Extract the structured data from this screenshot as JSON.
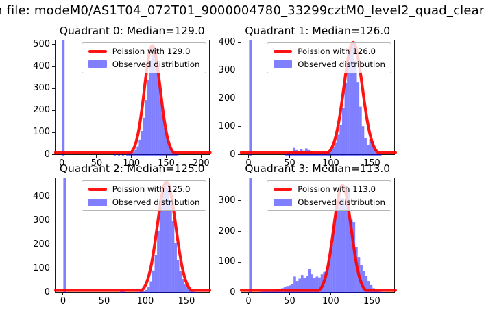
{
  "figure_title": "n file: modeM0/AS1T04_072T01_9000004780_33299cztM0_level2_quad_clear",
  "colors": {
    "observed_fill": "#0000ff",
    "observed_fill_effective": "#8080ff",
    "observed_alpha": 0.5,
    "poisson_line": "#ff0000",
    "legend_border": "#b6b6b6",
    "legend_background": "rgba(255,255,255,0.8)",
    "frame": "#1a1a1a",
    "background": "#ffffff"
  },
  "chart_data": [
    {
      "type": "bar",
      "subtype": "histogram-with-fit",
      "quadrant": 0,
      "title": "Quadrant 0: Median=129.0",
      "median": 129.0,
      "legend": {
        "fit_label": "Poission with 129.0",
        "observed_label": "Observed distribution",
        "position": "upper right"
      },
      "xlim": [
        -10,
        212
      ],
      "ylim": [
        0,
        523
      ],
      "xticks": [
        0,
        50,
        100,
        150,
        200
      ],
      "yticks": [
        0,
        100,
        200,
        300,
        400,
        500
      ],
      "bin_width": 3,
      "zero_spike": {
        "x": 0,
        "width": 3.5,
        "clipped_at_top": true
      },
      "poisson_fit": {
        "mu": 129.0,
        "sigma": 11.4,
        "amplitude": 500
      },
      "bars": [
        [
          75,
          7
        ],
        [
          81,
          5
        ],
        [
          87,
          6
        ],
        [
          93,
          8
        ],
        [
          96,
          10
        ],
        [
          99,
          12
        ],
        [
          102,
          16
        ],
        [
          105,
          26
        ],
        [
          108,
          42
        ],
        [
          111,
          72
        ],
        [
          114,
          112
        ],
        [
          117,
          172
        ],
        [
          120,
          252
        ],
        [
          123,
          345
        ],
        [
          126,
          432
        ],
        [
          129,
          490
        ],
        [
          132,
          470
        ],
        [
          135,
          428
        ],
        [
          138,
          350
        ],
        [
          141,
          262
        ],
        [
          144,
          185
        ],
        [
          147,
          126
        ],
        [
          150,
          82
        ],
        [
          153,
          52
        ],
        [
          156,
          31
        ],
        [
          159,
          18
        ],
        [
          162,
          10
        ],
        [
          165,
          6
        ]
      ]
    },
    {
      "type": "bar",
      "subtype": "histogram-with-fit",
      "quadrant": 1,
      "title": "Quadrant 1: Median=126.0",
      "median": 126.0,
      "legend": {
        "fit_label": "Poission with 126.0",
        "observed_label": "Observed distribution",
        "position": "upper right"
      },
      "xlim": [
        -10,
        178
      ],
      "ylim": [
        0,
        412
      ],
      "xticks": [
        0,
        50,
        100,
        150
      ],
      "yticks": [
        0,
        100,
        200,
        300,
        400
      ],
      "bin_width": 3,
      "zero_spike": {
        "x": 0,
        "width": 3.5,
        "clipped_at_top": true
      },
      "poisson_fit": {
        "mu": 126.0,
        "sigma": 11.2,
        "amplitude": 405
      },
      "bars": [
        [
          45,
          8
        ],
        [
          48,
          12
        ],
        [
          51,
          16
        ],
        [
          54,
          28
        ],
        [
          57,
          20
        ],
        [
          60,
          16
        ],
        [
          63,
          22
        ],
        [
          66,
          18
        ],
        [
          69,
          26
        ],
        [
          72,
          20
        ],
        [
          75,
          16
        ],
        [
          78,
          12
        ],
        [
          81,
          10
        ],
        [
          84,
          12
        ],
        [
          87,
          10
        ],
        [
          90,
          14
        ],
        [
          93,
          12
        ],
        [
          96,
          16
        ],
        [
          99,
          20
        ],
        [
          102,
          30
        ],
        [
          105,
          48
        ],
        [
          108,
          75
        ],
        [
          111,
          110
        ],
        [
          114,
          170
        ],
        [
          117,
          260
        ],
        [
          120,
          335
        ],
        [
          123,
          382
        ],
        [
          126,
          395
        ],
        [
          129,
          340
        ],
        [
          132,
          262
        ],
        [
          135,
          175
        ],
        [
          138,
          105
        ],
        [
          141,
          62
        ],
        [
          144,
          38
        ],
        [
          147,
          58
        ],
        [
          150,
          52
        ],
        [
          153,
          22
        ],
        [
          156,
          9
        ],
        [
          159,
          5
        ]
      ]
    },
    {
      "type": "bar",
      "subtype": "histogram-with-fit",
      "quadrant": 2,
      "title": "Quadrant 2: Median=125.0",
      "median": 125.0,
      "legend": {
        "fit_label": "Poission with 125.0",
        "observed_label": "Observed distribution",
        "position": "upper right"
      },
      "xlim": [
        -10,
        178
      ],
      "ylim": [
        0,
        480
      ],
      "xticks": [
        0,
        50,
        100,
        150
      ],
      "yticks": [
        0,
        100,
        200,
        300,
        400
      ],
      "bin_width": 3,
      "zero_spike": {
        "x": 0,
        "width": 3.5,
        "clipped_at_top": true
      },
      "poisson_fit": {
        "mu": 125.0,
        "sigma": 11.2,
        "amplitude": 465
      },
      "bars": [
        [
          70,
          14
        ],
        [
          73,
          8
        ],
        [
          85,
          4
        ],
        [
          88,
          5
        ],
        [
          91,
          6
        ],
        [
          94,
          8
        ],
        [
          97,
          10
        ],
        [
          100,
          15
        ],
        [
          103,
          26
        ],
        [
          106,
          50
        ],
        [
          109,
          95
        ],
        [
          112,
          160
        ],
        [
          115,
          260
        ],
        [
          118,
          360
        ],
        [
          121,
          430
        ],
        [
          124,
          462
        ],
        [
          127,
          440
        ],
        [
          130,
          388
        ],
        [
          133,
          300
        ],
        [
          136,
          210
        ],
        [
          139,
          140
        ],
        [
          142,
          92
        ],
        [
          145,
          60
        ],
        [
          148,
          40
        ],
        [
          151,
          25
        ],
        [
          154,
          15
        ],
        [
          157,
          9
        ],
        [
          160,
          6
        ],
        [
          163,
          4
        ]
      ]
    },
    {
      "type": "bar",
      "subtype": "histogram-with-fit",
      "quadrant": 3,
      "title": "Quadrant 3: Median=113.0",
      "median": 113.0,
      "legend": {
        "fit_label": "Poission with 113.0",
        "observed_label": "Observed distribution",
        "position": "upper right"
      },
      "xlim": [
        -10,
        178
      ],
      "ylim": [
        0,
        375
      ],
      "xticks": [
        0,
        50,
        100,
        150
      ],
      "yticks": [
        0,
        100,
        200,
        300
      ],
      "bin_width": 3,
      "zero_spike": {
        "x": 0,
        "width": 3.5,
        "clipped_at_top": true
      },
      "poisson_fit": {
        "mu": 113.0,
        "sigma": 10.6,
        "amplitude": 352
      },
      "bars": [
        [
          13,
          5
        ],
        [
          16,
          6
        ],
        [
          19,
          7
        ],
        [
          22,
          8
        ],
        [
          25,
          9
        ],
        [
          28,
          10
        ],
        [
          31,
          12
        ],
        [
          34,
          13
        ],
        [
          37,
          15
        ],
        [
          40,
          17
        ],
        [
          43,
          20
        ],
        [
          46,
          24
        ],
        [
          49,
          26
        ],
        [
          52,
          30
        ],
        [
          55,
          55
        ],
        [
          58,
          40
        ],
        [
          61,
          48
        ],
        [
          64,
          60
        ],
        [
          67,
          50
        ],
        [
          70,
          58
        ],
        [
          73,
          80
        ],
        [
          76,
          62
        ],
        [
          79,
          50
        ],
        [
          82,
          55
        ],
        [
          85,
          52
        ],
        [
          88,
          62
        ],
        [
          91,
          70
        ],
        [
          94,
          85
        ],
        [
          97,
          110
        ],
        [
          100,
          160
        ],
        [
          103,
          225
        ],
        [
          106,
          280
        ],
        [
          109,
          340
        ],
        [
          112,
          310
        ],
        [
          115,
          292
        ],
        [
          118,
          348
        ],
        [
          121,
          335
        ],
        [
          124,
          240
        ],
        [
          127,
          232
        ],
        [
          130,
          150
        ],
        [
          133,
          118
        ],
        [
          136,
          92
        ],
        [
          139,
          72
        ],
        [
          142,
          58
        ],
        [
          145,
          40
        ],
        [
          148,
          27
        ],
        [
          151,
          17
        ],
        [
          154,
          11
        ],
        [
          157,
          7
        ],
        [
          160,
          5
        ],
        [
          163,
          4
        ]
      ]
    }
  ]
}
